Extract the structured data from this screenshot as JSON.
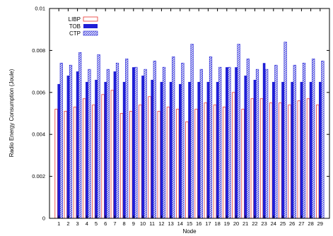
{
  "chart_data": {
    "type": "bar",
    "xlabel": "Node",
    "ylabel": "Radio Energy Consumption (Joule)",
    "ylim": [
      0,
      0.01
    ],
    "yticks": [
      "0",
      "0.002",
      "0.004",
      "0.006",
      "0.008",
      "0.01"
    ],
    "ytick_values": [
      0,
      0.002,
      0.004,
      0.006,
      0.008,
      0.01
    ],
    "categories": [
      "1",
      "2",
      "3",
      "4",
      "5",
      "6",
      "7",
      "8",
      "9",
      "10",
      "11",
      "12",
      "13",
      "14",
      "15",
      "16",
      "17",
      "18",
      "19",
      "20",
      "21",
      "22",
      "23",
      "24",
      "25",
      "26",
      "27",
      "28",
      "29"
    ],
    "legend_position": "top-left",
    "grid": false,
    "series": [
      {
        "name": "LIBP",
        "style": "outline",
        "color": "#e8322d",
        "values": [
          0.0052,
          0.0051,
          0.0053,
          0.0057,
          0.0054,
          0.0059,
          0.0061,
          0.005,
          0.0051,
          0.0054,
          0.0058,
          0.0051,
          0.0053,
          0.0052,
          0.0046,
          0.0052,
          0.0055,
          0.0054,
          0.0053,
          0.006,
          0.0052,
          0.0057,
          0.0057,
          0.0055,
          0.0055,
          0.0054,
          0.0056,
          0.0057,
          0.0054
        ]
      },
      {
        "name": "TOB",
        "style": "solid",
        "color": "#1f1fd6",
        "values": [
          0.0064,
          0.0068,
          0.007,
          0.0065,
          0.0066,
          0.0065,
          0.007,
          0.0065,
          0.0072,
          0.0068,
          0.0066,
          0.0065,
          0.0065,
          0.0064,
          0.0065,
          0.0065,
          0.0065,
          0.0065,
          0.0072,
          0.0072,
          0.0068,
          0.0066,
          0.0074,
          0.0065,
          0.0065,
          0.0065,
          0.0065,
          0.0065,
          0.0065
        ]
      },
      {
        "name": "CTP",
        "style": "hatched",
        "color": "#1f1fd6",
        "values": [
          0.0074,
          0.0073,
          0.0079,
          0.0071,
          0.0078,
          0.0071,
          0.0074,
          0.0076,
          0.0072,
          0.0071,
          0.0075,
          0.0072,
          0.0077,
          0.0074,
          0.0083,
          0.0071,
          0.0077,
          0.0072,
          0.0072,
          0.0083,
          0.0076,
          0.0071,
          0.0071,
          0.0073,
          0.0084,
          0.0073,
          0.0074,
          0.0076,
          0.0075
        ]
      }
    ]
  }
}
